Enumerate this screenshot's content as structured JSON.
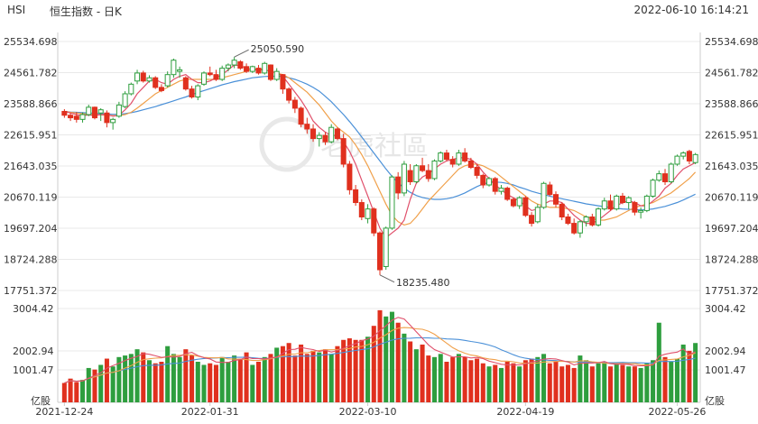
{
  "header": {
    "symbol": "HSI",
    "title": "恒生指数 - 日K",
    "timestamp": "2022-06-10 16:14:21"
  },
  "watermark": "老虎社區",
  "colors": {
    "up": "#2e9e3e",
    "down": "#e0301e",
    "ma5": "#e0506b",
    "ma10": "#f0a04a",
    "ma20": "#4a90d8",
    "grid": "#e9e9e9",
    "axis": "#cccccc"
  },
  "chart_data": {
    "type": "candlestick",
    "price_ticks": [
      "25534.698",
      "24561.782",
      "23588.866",
      "22615.951",
      "21643.035",
      "20670.119",
      "19697.204",
      "18724.288",
      "17751.372"
    ],
    "price_range": [
      17751.372,
      25534.698
    ],
    "volume_ticks": [
      "3004.42",
      "2002.94",
      "1001.47"
    ],
    "volume_unit": "亿股",
    "volume_range": [
      0,
      3004.42
    ],
    "date_ticks": [
      {
        "label": "2021-12-24",
        "index": 0
      },
      {
        "label": "2022-01-31",
        "index": 24
      },
      {
        "label": "2022-03-10",
        "index": 50
      },
      {
        "label": "2022-04-19",
        "index": 76
      },
      {
        "label": "2022-05-26",
        "index": 101
      }
    ],
    "annotations": [
      {
        "text": "25050.590",
        "index": 28,
        "kind": "high"
      },
      {
        "text": "18235.480",
        "index": 52,
        "kind": "low"
      }
    ],
    "candles": [
      {
        "o": 23350,
        "h": 23420,
        "l": 23150,
        "c": 23230,
        "v": 620
      },
      {
        "o": 23230,
        "h": 23300,
        "l": 23050,
        "c": 23150,
        "v": 760
      },
      {
        "o": 23200,
        "h": 23330,
        "l": 23000,
        "c": 23100,
        "v": 650
      },
      {
        "o": 23100,
        "h": 23320,
        "l": 23000,
        "c": 23250,
        "v": 720
      },
      {
        "o": 23250,
        "h": 23560,
        "l": 23200,
        "c": 23480,
        "v": 1100
      },
      {
        "o": 23480,
        "h": 23500,
        "l": 23100,
        "c": 23150,
        "v": 1050
      },
      {
        "o": 23300,
        "h": 23450,
        "l": 23050,
        "c": 23400,
        "v": 1200
      },
      {
        "o": 23300,
        "h": 23380,
        "l": 22850,
        "c": 23000,
        "v": 1400
      },
      {
        "o": 23000,
        "h": 23150,
        "l": 22780,
        "c": 23100,
        "v": 1150
      },
      {
        "o": 23200,
        "h": 23650,
        "l": 23150,
        "c": 23550,
        "v": 1450
      },
      {
        "o": 23500,
        "h": 23980,
        "l": 23450,
        "c": 23900,
        "v": 1500
      },
      {
        "o": 23900,
        "h": 24250,
        "l": 23850,
        "c": 24200,
        "v": 1550
      },
      {
        "o": 24300,
        "h": 24650,
        "l": 24200,
        "c": 24550,
        "v": 1700
      },
      {
        "o": 24550,
        "h": 24620,
        "l": 24250,
        "c": 24300,
        "v": 1600
      },
      {
        "o": 24300,
        "h": 24480,
        "l": 24250,
        "c": 24400,
        "v": 1350
      },
      {
        "o": 24400,
        "h": 24450,
        "l": 24050,
        "c": 24100,
        "v": 1250
      },
      {
        "o": 24100,
        "h": 24200,
        "l": 23950,
        "c": 24000,
        "v": 1300
      },
      {
        "o": 24150,
        "h": 24600,
        "l": 24100,
        "c": 24500,
        "v": 1800
      },
      {
        "o": 24500,
        "h": 25000,
        "l": 24400,
        "c": 24950,
        "v": 1550
      },
      {
        "o": 24600,
        "h": 24750,
        "l": 24400,
        "c": 24650,
        "v": 1450
      },
      {
        "o": 24400,
        "h": 24450,
        "l": 24000,
        "c": 24050,
        "v": 1700
      },
      {
        "o": 24050,
        "h": 24150,
        "l": 23750,
        "c": 23800,
        "v": 1500
      },
      {
        "o": 23800,
        "h": 24200,
        "l": 23700,
        "c": 24150,
        "v": 1300
      },
      {
        "o": 24200,
        "h": 24600,
        "l": 24150,
        "c": 24550,
        "v": 1200
      },
      {
        "o": 24550,
        "h": 24750,
        "l": 24450,
        "c": 24500,
        "v": 1250
      },
      {
        "o": 24500,
        "h": 24650,
        "l": 24300,
        "c": 24350,
        "v": 1200
      },
      {
        "o": 24350,
        "h": 24780,
        "l": 24300,
        "c": 24700,
        "v": 1450
      },
      {
        "o": 24700,
        "h": 24850,
        "l": 24600,
        "c": 24800,
        "v": 1300
      },
      {
        "o": 24800,
        "h": 25050,
        "l": 24700,
        "c": 24950,
        "v": 1500
      },
      {
        "o": 24900,
        "h": 24950,
        "l": 24650,
        "c": 24700,
        "v": 1400
      },
      {
        "o": 24750,
        "h": 24850,
        "l": 24550,
        "c": 24600,
        "v": 1600
      },
      {
        "o": 24600,
        "h": 24780,
        "l": 24550,
        "c": 24750,
        "v": 1200
      },
      {
        "o": 24700,
        "h": 24800,
        "l": 24500,
        "c": 24550,
        "v": 1300
      },
      {
        "o": 24550,
        "h": 24900,
        "l": 24500,
        "c": 24850,
        "v": 1450
      },
      {
        "o": 24800,
        "h": 24820,
        "l": 24300,
        "c": 24350,
        "v": 1550
      },
      {
        "o": 24350,
        "h": 24700,
        "l": 24300,
        "c": 24600,
        "v": 1750
      },
      {
        "o": 24500,
        "h": 24520,
        "l": 23900,
        "c": 24050,
        "v": 1800
      },
      {
        "o": 24050,
        "h": 24100,
        "l": 23600,
        "c": 23700,
        "v": 1900
      },
      {
        "o": 23700,
        "h": 23800,
        "l": 23300,
        "c": 23450,
        "v": 1500
      },
      {
        "o": 23450,
        "h": 23500,
        "l": 22850,
        "c": 22950,
        "v": 1850
      },
      {
        "o": 22950,
        "h": 23150,
        "l": 22650,
        "c": 22800,
        "v": 1550
      },
      {
        "o": 22800,
        "h": 22950,
        "l": 22400,
        "c": 22500,
        "v": 1650
      },
      {
        "o": 22500,
        "h": 22700,
        "l": 22250,
        "c": 22600,
        "v": 1600
      },
      {
        "o": 22600,
        "h": 22700,
        "l": 22300,
        "c": 22400,
        "v": 1700
      },
      {
        "o": 22400,
        "h": 22950,
        "l": 22350,
        "c": 22850,
        "v": 1550
      },
      {
        "o": 22800,
        "h": 22850,
        "l": 22450,
        "c": 22500,
        "v": 1800
      },
      {
        "o": 22500,
        "h": 22650,
        "l": 21600,
        "c": 21700,
        "v": 2000
      },
      {
        "o": 21700,
        "h": 21800,
        "l": 20750,
        "c": 20900,
        "v": 2050
      },
      {
        "o": 20900,
        "h": 21050,
        "l": 20400,
        "c": 20500,
        "v": 2000
      },
      {
        "o": 20500,
        "h": 20600,
        "l": 19950,
        "c": 20050,
        "v": 2000
      },
      {
        "o": 20000,
        "h": 20450,
        "l": 19850,
        "c": 20300,
        "v": 2100
      },
      {
        "o": 20300,
        "h": 20350,
        "l": 19450,
        "c": 19550,
        "v": 2450
      },
      {
        "o": 19550,
        "h": 19600,
        "l": 18235,
        "c": 18400,
        "v": 2950
      },
      {
        "o": 18500,
        "h": 19750,
        "l": 18400,
        "c": 19700,
        "v": 2750
      },
      {
        "o": 19700,
        "h": 21350,
        "l": 19650,
        "c": 21300,
        "v": 2900
      },
      {
        "o": 21300,
        "h": 21450,
        "l": 20600,
        "c": 20800,
        "v": 2550
      },
      {
        "o": 20800,
        "h": 21800,
        "l": 20700,
        "c": 21700,
        "v": 2200
      },
      {
        "o": 21500,
        "h": 21700,
        "l": 21050,
        "c": 21150,
        "v": 1950
      },
      {
        "o": 21150,
        "h": 21700,
        "l": 21100,
        "c": 21650,
        "v": 1700
      },
      {
        "o": 21650,
        "h": 21900,
        "l": 21450,
        "c": 21500,
        "v": 1850
      },
      {
        "o": 21500,
        "h": 21700,
        "l": 21150,
        "c": 21250,
        "v": 1500
      },
      {
        "o": 21250,
        "h": 21850,
        "l": 21200,
        "c": 21800,
        "v": 1450
      },
      {
        "o": 21800,
        "h": 22100,
        "l": 21750,
        "c": 22050,
        "v": 1550
      },
      {
        "o": 22050,
        "h": 22150,
        "l": 21800,
        "c": 21850,
        "v": 1300
      },
      {
        "o": 21850,
        "h": 21950,
        "l": 21600,
        "c": 21700,
        "v": 1450
      },
      {
        "o": 21700,
        "h": 22150,
        "l": 21650,
        "c": 22050,
        "v": 1550
      },
      {
        "o": 22050,
        "h": 22200,
        "l": 21750,
        "c": 21800,
        "v": 1450
      },
      {
        "o": 21800,
        "h": 21900,
        "l": 21550,
        "c": 21600,
        "v": 1350
      },
      {
        "o": 21600,
        "h": 21700,
        "l": 21250,
        "c": 21350,
        "v": 1400
      },
      {
        "o": 21350,
        "h": 21400,
        "l": 20950,
        "c": 21050,
        "v": 1250
      },
      {
        "o": 21050,
        "h": 21300,
        "l": 21000,
        "c": 21250,
        "v": 1150
      },
      {
        "o": 21250,
        "h": 21300,
        "l": 20750,
        "c": 20850,
        "v": 1200
      },
      {
        "o": 20850,
        "h": 21050,
        "l": 20750,
        "c": 20950,
        "v": 1100
      },
      {
        "o": 20950,
        "h": 21000,
        "l": 20550,
        "c": 20600,
        "v": 1300
      },
      {
        "o": 20600,
        "h": 20650,
        "l": 20350,
        "c": 20400,
        "v": 1250
      },
      {
        "o": 20400,
        "h": 20700,
        "l": 20300,
        "c": 20650,
        "v": 1150
      },
      {
        "o": 20650,
        "h": 20700,
        "l": 20050,
        "c": 20100,
        "v": 1350
      },
      {
        "o": 20100,
        "h": 20200,
        "l": 19750,
        "c": 19850,
        "v": 1400
      },
      {
        "o": 19900,
        "h": 20450,
        "l": 19850,
        "c": 20350,
        "v": 1450
      },
      {
        "o": 20350,
        "h": 21150,
        "l": 20300,
        "c": 21100,
        "v": 1550
      },
      {
        "o": 21050,
        "h": 21150,
        "l": 20700,
        "c": 20750,
        "v": 1250
      },
      {
        "o": 20750,
        "h": 20850,
        "l": 20350,
        "c": 20450,
        "v": 1300
      },
      {
        "o": 20450,
        "h": 20500,
        "l": 19950,
        "c": 20050,
        "v": 1150
      },
      {
        "o": 20050,
        "h": 20150,
        "l": 19800,
        "c": 19850,
        "v": 1200
      },
      {
        "o": 19850,
        "h": 20000,
        "l": 19500,
        "c": 19550,
        "v": 1100
      },
      {
        "o": 19550,
        "h": 19950,
        "l": 19400,
        "c": 19900,
        "v": 1500
      },
      {
        "o": 19900,
        "h": 20100,
        "l": 19750,
        "c": 20050,
        "v": 1350
      },
      {
        "o": 20050,
        "h": 20150,
        "l": 19750,
        "c": 19800,
        "v": 1150
      },
      {
        "o": 19800,
        "h": 20350,
        "l": 19750,
        "c": 20300,
        "v": 1250
      },
      {
        "o": 20300,
        "h": 20650,
        "l": 20250,
        "c": 20550,
        "v": 1300
      },
      {
        "o": 20550,
        "h": 20750,
        "l": 20250,
        "c": 20300,
        "v": 1150
      },
      {
        "o": 20300,
        "h": 20750,
        "l": 20250,
        "c": 20700,
        "v": 1250
      },
      {
        "o": 20700,
        "h": 20800,
        "l": 20450,
        "c": 20500,
        "v": 1200
      },
      {
        "o": 20500,
        "h": 20700,
        "l": 20300,
        "c": 20650,
        "v": 1150
      },
      {
        "o": 20500,
        "h": 20550,
        "l": 20100,
        "c": 20200,
        "v": 1150
      },
      {
        "o": 20200,
        "h": 20350,
        "l": 20000,
        "c": 20250,
        "v": 1100
      },
      {
        "o": 20250,
        "h": 20750,
        "l": 20200,
        "c": 20700,
        "v": 1250
      },
      {
        "o": 20700,
        "h": 21250,
        "l": 20650,
        "c": 21200,
        "v": 1350
      },
      {
        "o": 21200,
        "h": 21500,
        "l": 21150,
        "c": 21400,
        "v": 2550
      },
      {
        "o": 21400,
        "h": 21550,
        "l": 21050,
        "c": 21150,
        "v": 1450
      },
      {
        "o": 21150,
        "h": 21750,
        "l": 21100,
        "c": 21700,
        "v": 1300
      },
      {
        "o": 21700,
        "h": 22000,
        "l": 21650,
        "c": 21950,
        "v": 1400
      },
      {
        "o": 21950,
        "h": 22100,
        "l": 21850,
        "c": 22050,
        "v": 1850
      },
      {
        "o": 22100,
        "h": 22150,
        "l": 21700,
        "c": 21800,
        "v": 1650
      },
      {
        "o": 21750,
        "h": 22050,
        "l": 21700,
        "c": 22000,
        "v": 1900
      }
    ],
    "ma5": [
      23350,
      23300,
      23250,
      23220,
      23240,
      23220,
      23250,
      23250,
      23200,
      23230,
      23400,
      23600,
      23900,
      24100,
      24300,
      24350,
      24250,
      24200,
      24350,
      24450,
      24500,
      24350,
      24250,
      24250,
      24300,
      24400,
      24500,
      24650,
      24800,
      24780,
      24700,
      24650,
      24650,
      24650,
      24600,
      24550,
      24450,
      24200,
      23950,
      23700,
      23400,
      23050,
      22850,
      22700,
      22600,
      22600,
      22400,
      22100,
      21700,
      21200,
      20700,
      20200,
      19700,
      19400,
      19550,
      19700,
      19950,
      20600,
      21100,
      21300,
      21400,
      21550,
      21700,
      21800,
      21850,
      21900,
      21900,
      21850,
      21700,
      21450,
      21250,
      21050,
      20900,
      20750,
      20650,
      20550,
      20400,
      20250,
      20300,
      20450,
      20550,
      20550,
      20500,
      20300,
      20100,
      19950,
      19850,
      19850,
      19950,
      20100,
      20250,
      20400,
      20500,
      20550,
      20500,
      20400,
      20400,
      20550,
      20700,
      20950,
      21100,
      21350,
      21550,
      21650,
      21750
    ],
    "ma10": [
      23350,
      23320,
      23300,
      23280,
      23260,
      23250,
      23240,
      23230,
      23220,
      23220,
      23250,
      23320,
      23450,
      23600,
      23750,
      23900,
      24000,
      24100,
      24200,
      24300,
      24350,
      24350,
      24350,
      24350,
      24350,
      24350,
      24400,
      24450,
      24500,
      24550,
      24600,
      24650,
      24680,
      24650,
      24600,
      24550,
      24500,
      24400,
      24250,
      24100,
      23950,
      23750,
      23550,
      23300,
      23050,
      22850,
      22700,
      22550,
      22300,
      22000,
      21650,
      21250,
      20850,
      20450,
      20100,
      19900,
      19800,
      19850,
      20050,
      20300,
      20550,
      20750,
      20950,
      21150,
      21350,
      21550,
      21650,
      21700,
      21700,
      21650,
      21550,
      21450,
      21300,
      21150,
      21000,
      20850,
      20700,
      20550,
      20450,
      20400,
      20350,
      20350,
      20350,
      20300,
      20250,
      20150,
      20050,
      20000,
      19950,
      19950,
      20000,
      20050,
      20150,
      20250,
      20350,
      20400,
      20450,
      20500,
      20600,
      20700,
      20800,
      20950,
      21100,
      21250,
      21450
    ],
    "ma20": [
      23350,
      23330,
      23320,
      23310,
      23300,
      23290,
      23280,
      23270,
      23260,
      23260,
      23280,
      23310,
      23350,
      23400,
      23450,
      23500,
      23560,
      23620,
      23680,
      23740,
      23800,
      23870,
      23940,
      24000,
      24060,
      24120,
      24180,
      24230,
      24280,
      24320,
      24360,
      24400,
      24420,
      24440,
      24450,
      24450,
      24440,
      24400,
      24350,
      24280,
      24200,
      24100,
      23980,
      23820,
      23650,
      23450,
      23250,
      23030,
      22800,
      22550,
      22300,
      22050,
      21800,
      21550,
      21320,
      21120,
      20950,
      20820,
      20720,
      20660,
      20620,
      20600,
      20600,
      20620,
      20660,
      20720,
      20800,
      20900,
      21000,
      21080,
      21120,
      21140,
      21130,
      21100,
      21050,
      20980,
      20920,
      20850,
      20800,
      20750,
      20700,
      20660,
      20620,
      20580,
      20540,
      20500,
      20460,
      20430,
      20400,
      20370,
      20340,
      20320,
      20300,
      20290,
      20280,
      20270,
      20280,
      20300,
      20340,
      20380,
      20440,
      20500,
      20580,
      20670,
      20760
    ]
  }
}
